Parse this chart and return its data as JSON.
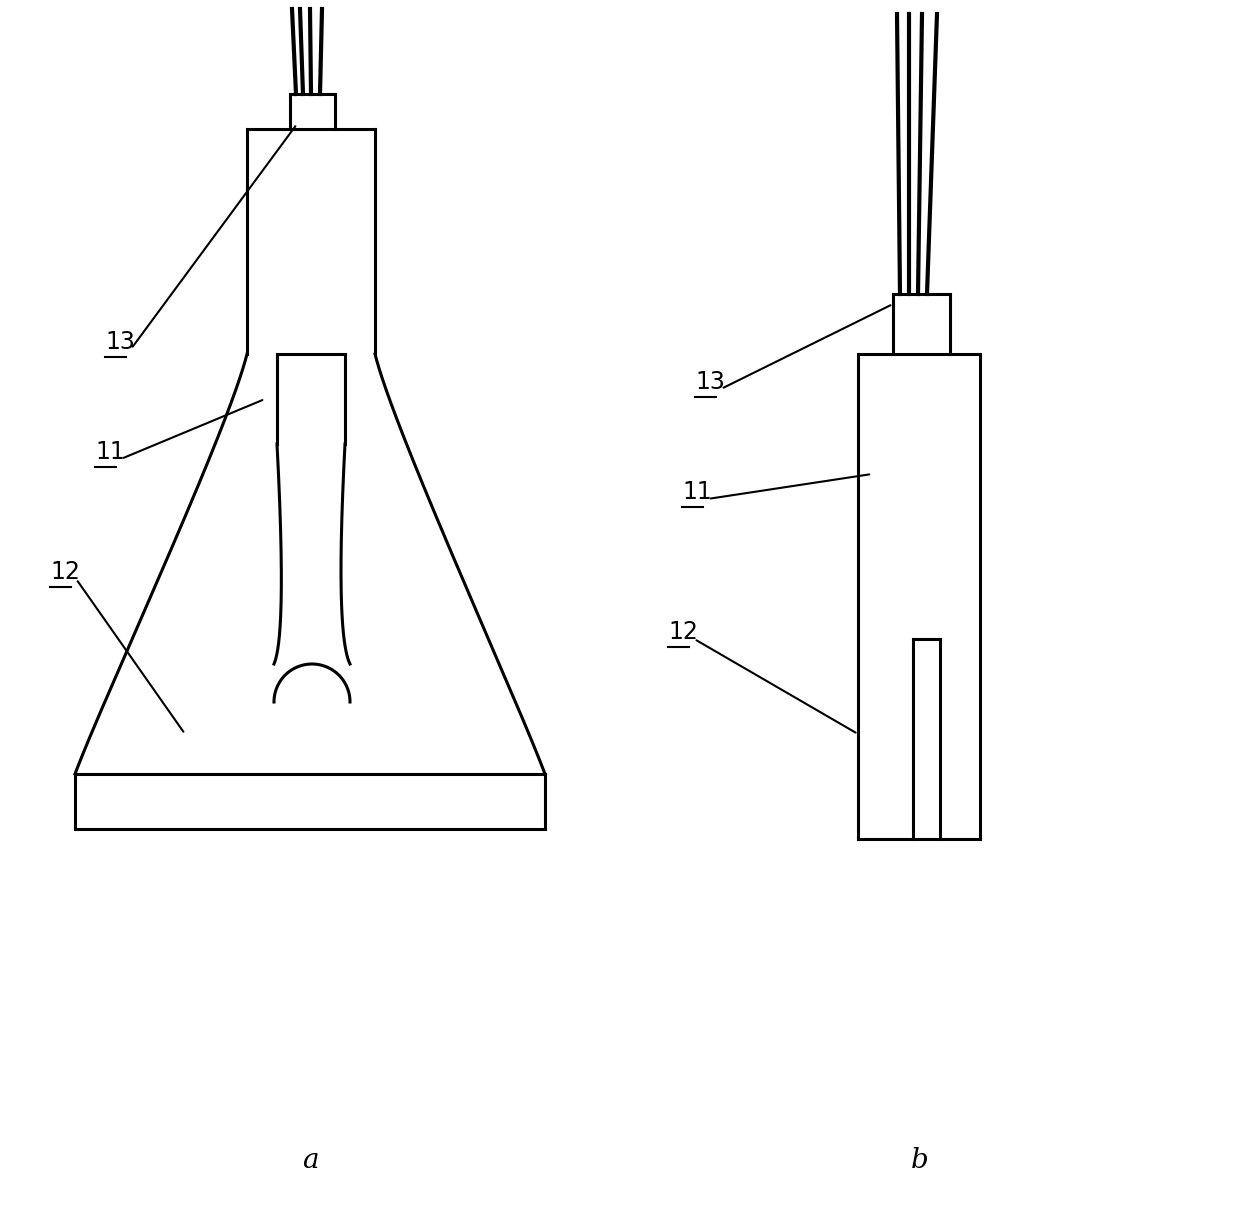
{
  "bg_color": "#ffffff",
  "line_color": "#000000",
  "line_width": 2.2,
  "label_fontsize": 17,
  "sublabel_fontsize": 20,
  "fig_width": 12.4,
  "fig_height": 12.24
}
